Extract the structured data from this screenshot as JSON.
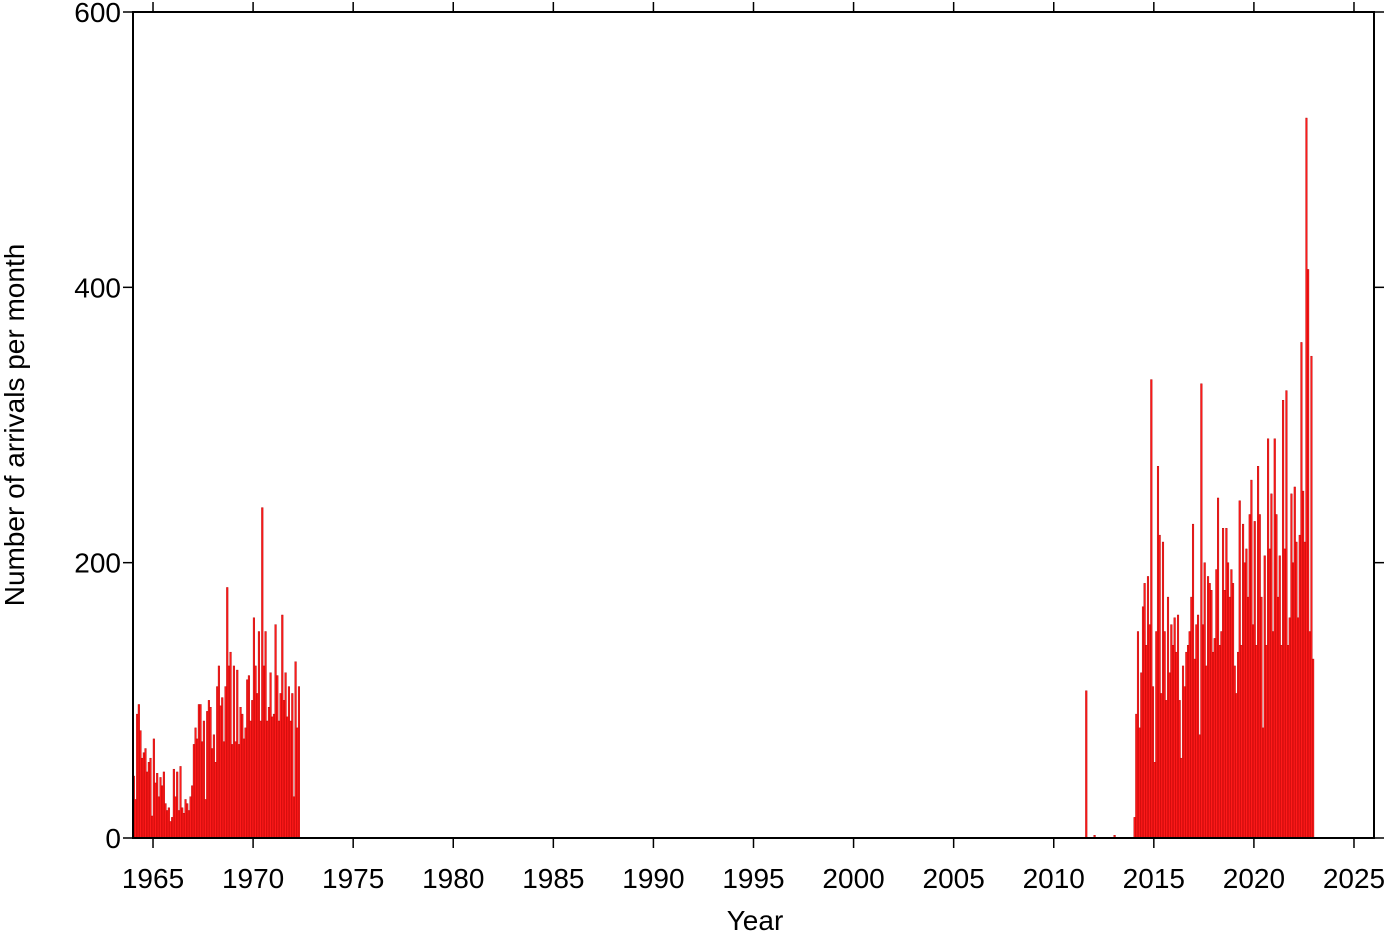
{
  "chart_data": {
    "type": "bar",
    "xlabel": "Year",
    "ylabel": "Number of arrivals per month",
    "color": "#ff1a1a",
    "xlim": [
      1964,
      2026
    ],
    "ylim": [
      0,
      600
    ],
    "xticks": [
      1965,
      1970,
      1975,
      1980,
      1985,
      1990,
      1995,
      2000,
      2005,
      2010,
      2015,
      2020,
      2025
    ],
    "yticks": [
      0,
      200,
      400,
      600
    ],
    "x": [
      1964,
      1964.083,
      1964.167,
      1964.25,
      1964.333,
      1964.417,
      1964.5,
      1964.583,
      1964.667,
      1964.75,
      1964.833,
      1964.917,
      1965,
      1965.083,
      1965.167,
      1965.25,
      1965.333,
      1965.417,
      1965.5,
      1965.583,
      1965.667,
      1965.75,
      1965.833,
      1965.917,
      1966,
      1966.083,
      1966.167,
      1966.25,
      1966.333,
      1966.417,
      1966.5,
      1966.583,
      1966.667,
      1966.75,
      1966.833,
      1966.917,
      1967,
      1967.083,
      1967.167,
      1967.25,
      1967.333,
      1967.417,
      1967.5,
      1967.583,
      1967.667,
      1967.75,
      1967.833,
      1967.917,
      1968,
      1968.083,
      1968.167,
      1968.25,
      1968.333,
      1968.417,
      1968.5,
      1968.583,
      1968.667,
      1968.75,
      1968.833,
      1968.917,
      1969,
      1969.083,
      1969.167,
      1969.25,
      1969.333,
      1969.417,
      1969.5,
      1969.583,
      1969.667,
      1969.75,
      1969.833,
      1969.917,
      1970,
      1970.083,
      1970.167,
      1970.25,
      1970.333,
      1970.417,
      1970.5,
      1970.583,
      1970.667,
      1970.75,
      1970.833,
      1970.917,
      1971,
      1971.083,
      1971.167,
      1971.25,
      1971.333,
      1971.417,
      1971.5,
      1971.583,
      1971.667,
      1971.75,
      1971.833,
      1971.917,
      1972,
      1972.083,
      1972.167,
      1972.25,
      2011.583,
      2012,
      2013,
      2014,
      2014.083,
      2014.167,
      2014.25,
      2014.333,
      2014.417,
      2014.5,
      2014.583,
      2014.667,
      2014.75,
      2014.833,
      2014.917,
      2015,
      2015.083,
      2015.167,
      2015.25,
      2015.333,
      2015.417,
      2015.5,
      2015.583,
      2015.667,
      2015.75,
      2015.833,
      2015.917,
      2016,
      2016.083,
      2016.167,
      2016.25,
      2016.333,
      2016.417,
      2016.5,
      2016.583,
      2016.667,
      2016.75,
      2016.833,
      2016.917,
      2017,
      2017.083,
      2017.167,
      2017.25,
      2017.333,
      2017.417,
      2017.5,
      2017.583,
      2017.667,
      2017.75,
      2017.833,
      2017.917,
      2018,
      2018.083,
      2018.167,
      2018.25,
      2018.333,
      2018.417,
      2018.5,
      2018.583,
      2018.667,
      2018.75,
      2018.833,
      2018.917,
      2019,
      2019.083,
      2019.167,
      2019.25,
      2019.333,
      2019.417,
      2019.5,
      2019.583,
      2019.667,
      2019.75,
      2019.833,
      2019.917,
      2020,
      2020.083,
      2020.167,
      2020.25,
      2020.333,
      2020.417,
      2020.5,
      2020.583,
      2020.667,
      2020.75,
      2020.833,
      2020.917,
      2021,
      2021.083,
      2021.167,
      2021.25,
      2021.333,
      2021.417,
      2021.5,
      2021.583,
      2021.667,
      2021.75,
      2021.833,
      2021.917,
      2022,
      2022.083,
      2022.167,
      2022.25,
      2022.333,
      2022.417,
      2022.5,
      2022.583,
      2022.667,
      2022.75,
      2022.833,
      2022.917
    ],
    "values": [
      45,
      28,
      90,
      97,
      78,
      58,
      62,
      65,
      48,
      55,
      58,
      16,
      72,
      40,
      47,
      30,
      44,
      38,
      48,
      25,
      20,
      22,
      12,
      15,
      50,
      30,
      48,
      20,
      52,
      22,
      18,
      28,
      25,
      20,
      30,
      38,
      68,
      80,
      72,
      97,
      97,
      70,
      85,
      28,
      92,
      100,
      95,
      65,
      75,
      55,
      110,
      125,
      96,
      102,
      70,
      110,
      182,
      125,
      135,
      68,
      125,
      70,
      122,
      68,
      95,
      90,
      72,
      80,
      115,
      118,
      85,
      100,
      160,
      125,
      105,
      150,
      85,
      240,
      125,
      150,
      85,
      95,
      120,
      88,
      90,
      155,
      118,
      85,
      105,
      162,
      100,
      120,
      88,
      110,
      85,
      105,
      30,
      128,
      80,
      110,
      107,
      2,
      2,
      15,
      90,
      150,
      80,
      120,
      168,
      185,
      140,
      190,
      155,
      333,
      110,
      55,
      150,
      270,
      220,
      105,
      215,
      150,
      100,
      175,
      120,
      155,
      140,
      160,
      135,
      162,
      100,
      58,
      125,
      110,
      135,
      140,
      150,
      175,
      228,
      130,
      155,
      162,
      75,
      330,
      155,
      200,
      125,
      190,
      185,
      180,
      135,
      145,
      195,
      247,
      140,
      150,
      225,
      180,
      225,
      200,
      175,
      195,
      185,
      125,
      105,
      135,
      245,
      140,
      228,
      200,
      210,
      175,
      235,
      260,
      155,
      230,
      140,
      270,
      235,
      175,
      80,
      205,
      140,
      290,
      210,
      250,
      150,
      290,
      235,
      175,
      205,
      140,
      318,
      210,
      325,
      140,
      160,
      250,
      200,
      255,
      215,
      160,
      220,
      360,
      252,
      215,
      523,
      413,
      150,
      350,
      130
    ]
  }
}
